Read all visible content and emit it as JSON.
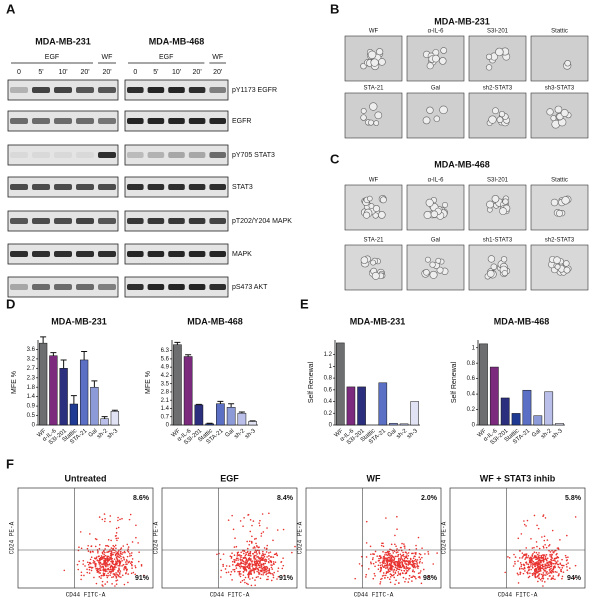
{
  "panel_labels": [
    "A",
    "B",
    "C",
    "D",
    "E",
    "F"
  ],
  "blots": [
    {
      "title": "MDA-MB-231",
      "groups": [
        "EGF",
        "WF"
      ],
      "lanes": [
        "0",
        "5'",
        "10'",
        "20'",
        "20'"
      ]
    },
    {
      "title": "MDA-MB-468",
      "groups": [
        "EGF",
        "WF"
      ],
      "lanes": [
        "0",
        "5'",
        "10'",
        "20'",
        "20'"
      ]
    }
  ],
  "blot_rows": [
    "pY1173 EGFR",
    "EGFR",
    "pY705 STAT3",
    "STAT3",
    "pT202/Y204 MAPK",
    "MAPK",
    "pS473 AKT"
  ],
  "image_panels": [
    {
      "title": "MDA-MB-231",
      "labels": [
        "WF",
        "α-IL-6",
        "S3I-201",
        "Stattic",
        "STA-21",
        "Gal",
        "sh2-STAT3",
        "sh3-STAT3"
      ]
    },
    {
      "title": "MDA-MB-468",
      "labels": [
        "WF",
        "α-IL-6",
        "S3I-201",
        "Stattic",
        "STA-21",
        "Gal",
        "sh1-STAT3",
        "sh2-STAT3"
      ]
    }
  ],
  "chart_data": [
    {
      "type": "bar",
      "title": "MDA-MB-231",
      "ylabel": "MFE %",
      "categories": [
        "WF",
        "α-IL-6",
        "S3I-201",
        "Stattic",
        "STA-21",
        "Gal",
        "sh-2",
        "sh-3"
      ],
      "values": [
        3.9,
        3.3,
        2.7,
        1.0,
        3.1,
        1.8,
        0.3,
        0.65
      ],
      "errors": [
        0.3,
        0.15,
        0.4,
        0.4,
        0.4,
        0.3,
        0.1,
        0.05
      ],
      "colors": [
        "#6d6e70",
        "#7b2a7e",
        "#2b2f7d",
        "#1f3a93",
        "#5b6fc4",
        "#8c9ad8",
        "#b9bfe8",
        "#e1e3f4"
      ],
      "ylim": [
        0,
        4.05
      ],
      "yticks": [
        0,
        {
          "value": 0.45,
          "label": "0.5"
        },
        0.9,
        {
          "value": 1.35,
          "label": "1.4"
        },
        1.8,
        {
          "value": 2.25,
          "label": "2.3"
        },
        2.7,
        {
          "value": 3.15,
          "label": "3.2"
        },
        3.6
      ]
    },
    {
      "type": "bar",
      "title": "MDA-MB-468",
      "ylabel": "MFE %",
      "categories": [
        "WF",
        "α-IL-6",
        "S3I-201",
        "Stattic",
        "STA-21",
        "Gal",
        "sh-2",
        "sh-3"
      ],
      "values": [
        6.8,
        5.8,
        1.7,
        0.1,
        1.8,
        1.5,
        1.0,
        0.3
      ],
      "errors": [
        0.2,
        0.15,
        0.05,
        0.05,
        0.2,
        0.3,
        0.1,
        0.05
      ],
      "colors": [
        "#6d6e70",
        "#7b2a7e",
        "#2b2f7d",
        "#1f3a93",
        "#5b6fc4",
        "#8c9ad8",
        "#b9bfe8",
        "#e1e3f4"
      ],
      "ylim": [
        0,
        7.2
      ],
      "yticks": [
        0,
        0.7,
        1.4,
        2.1,
        2.8,
        3.5,
        4.2,
        4.9,
        5.6,
        6.3
      ]
    },
    {
      "type": "bar",
      "title": "MDA-MB-231",
      "ylabel": "Self Renewal",
      "categories": [
        "WF",
        "α-IL-6",
        "S3I-201",
        "Stattic",
        "STA-21",
        "Gal",
        "sh-2",
        "sh-3"
      ],
      "values": [
        1.4,
        0.65,
        0.65,
        0.0,
        0.72,
        0.03,
        0.02,
        0.4
      ],
      "colors": [
        "#6d6e70",
        "#7b2a7e",
        "#2b2f7d",
        "#1f3a93",
        "#5b6fc4",
        "#8c9ad8",
        "#b9bfe8",
        "#e1e3f4"
      ],
      "ylim": [
        0,
        1.45
      ],
      "yticks": [
        0,
        0.2,
        0.4,
        0.6,
        0.8,
        1,
        1.2
      ]
    },
    {
      "type": "bar",
      "title": "MDA-MB-468",
      "ylabel": "Self Renewal",
      "categories": [
        "WF",
        "α-IL-6",
        "S3I-201",
        "Stattic",
        "STA-21",
        "Gal",
        "sh-2",
        "sh-3"
      ],
      "values": [
        1.05,
        0.75,
        0.35,
        0.15,
        0.45,
        0.12,
        0.43,
        0.02
      ],
      "colors": [
        "#6d6e70",
        "#7b2a7e",
        "#2b2f7d",
        "#1f3a93",
        "#5b6fc4",
        "#8c9ad8",
        "#b9bfe8",
        "#e1e3f4"
      ],
      "ylim": [
        0,
        1.1
      ],
      "yticks": [
        0,
        0.2,
        0.4,
        0.6,
        0.8,
        1
      ]
    }
  ],
  "flow": {
    "ylabel": "CD24 PE-A",
    "xlabel": "CD44 FITC-A",
    "plots": [
      {
        "title": "Untreated",
        "upper": "8.6%",
        "lower": "91%"
      },
      {
        "title": "EGF",
        "upper": "8.4%",
        "lower": "91%"
      },
      {
        "title": "WF",
        "upper": "2.0%",
        "lower": "98%"
      },
      {
        "title": "WF + STAT3 inhib",
        "upper": "5.8%",
        "lower": "94%"
      }
    ]
  }
}
